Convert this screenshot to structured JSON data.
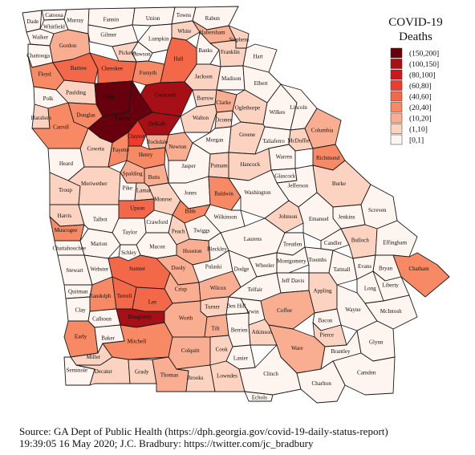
{
  "legend": {
    "title_line1": "COVID-19",
    "title_line2": "Deaths",
    "bins": [
      {
        "label": "(150,200]",
        "color": "#67000d"
      },
      {
        "label": "(100,150]",
        "color": "#a50f15"
      },
      {
        "label": "(80,100]",
        "color": "#cb181d"
      },
      {
        "label": "(60,80]",
        "color": "#ef3b2c"
      },
      {
        "label": "(40,60]",
        "color": "#f4684a"
      },
      {
        "label": "(20,40]",
        "color": "#f78a64"
      },
      {
        "label": "(10,20]",
        "color": "#f9ae92"
      },
      {
        "label": "(1,10]",
        "color": "#fcd3c0"
      },
      {
        "label": "[0,1]",
        "color": "#fff5f0"
      }
    ]
  },
  "source": {
    "line1": "Source: GA Dept of Public Health (https://dph.georgia.gov/covid-19-daily-status-report)",
    "line2": "19:39:05  16 May 2020; J.C. Bradbury: https://twitter.com/jc_bradbury"
  },
  "counties": [
    {
      "name": "Dade",
      "bin": 8
    },
    {
      "name": "Catoosa",
      "bin": 8
    },
    {
      "name": "Whitfield",
      "bin": 8
    },
    {
      "name": "Murray",
      "bin": 8
    },
    {
      "name": "Fannin",
      "bin": 8
    },
    {
      "name": "Union",
      "bin": 8
    },
    {
      "name": "Towns",
      "bin": 8
    },
    {
      "name": "Rabun",
      "bin": 8
    },
    {
      "name": "Walker",
      "bin": 8
    },
    {
      "name": "Gilmer",
      "bin": 8
    },
    {
      "name": "White",
      "bin": 7
    },
    {
      "name": "Habersham",
      "bin": 6
    },
    {
      "name": "Stephens",
      "bin": 7
    },
    {
      "name": "Chattooga",
      "bin": 8
    },
    {
      "name": "Gordon",
      "bin": 6
    },
    {
      "name": "Lumpkin",
      "bin": 8
    },
    {
      "name": "Dawson",
      "bin": 8
    },
    {
      "name": "Pickens",
      "bin": 7
    },
    {
      "name": "Banks",
      "bin": 8
    },
    {
      "name": "Franklin",
      "bin": 7
    },
    {
      "name": "Hart",
      "bin": 8
    },
    {
      "name": "Floyd",
      "bin": 5
    },
    {
      "name": "Bartow",
      "bin": 4
    },
    {
      "name": "Cherokee",
      "bin": 4
    },
    {
      "name": "Forsyth",
      "bin": 5
    },
    {
      "name": "Hall",
      "bin": 4
    },
    {
      "name": "Jackson",
      "bin": 7
    },
    {
      "name": "Madison",
      "bin": 8
    },
    {
      "name": "Elbert",
      "bin": 8
    },
    {
      "name": "Polk",
      "bin": 8
    },
    {
      "name": "Paulding",
      "bin": 7
    },
    {
      "name": "Cobb",
      "bin": 0
    },
    {
      "name": "Gwinnett",
      "bin": 1
    },
    {
      "name": "Barrow",
      "bin": 7
    },
    {
      "name": "Clarke",
      "bin": 6
    },
    {
      "name": "Oglethorpe",
      "bin": 7
    },
    {
      "name": "Haralson",
      "bin": 7
    },
    {
      "name": "Douglas",
      "bin": 5
    },
    {
      "name": "Fulton",
      "bin": 0
    },
    {
      "name": "DeKalb",
      "bin": 1
    },
    {
      "name": "Walton",
      "bin": 7
    },
    {
      "name": "Oconee",
      "bin": 7
    },
    {
      "name": "Wilkes",
      "bin": 8
    },
    {
      "name": "Lincoln",
      "bin": 8
    },
    {
      "name": "Carroll",
      "bin": 5
    },
    {
      "name": "Clayton",
      "bin": 3
    },
    {
      "name": "Rockdale",
      "bin": 6
    },
    {
      "name": "Newton",
      "bin": 6
    },
    {
      "name": "Morgan",
      "bin": 8
    },
    {
      "name": "Greene",
      "bin": 7
    },
    {
      "name": "Taliaferro",
      "bin": 8
    },
    {
      "name": "McDuffie",
      "bin": 7
    },
    {
      "name": "Columbia",
      "bin": 6
    },
    {
      "name": "Coweta",
      "bin": 7
    },
    {
      "name": "Fayette",
      "bin": 5
    },
    {
      "name": "Henry",
      "bin": 5
    },
    {
      "name": "Spalding",
      "bin": 6
    },
    {
      "name": "Butts",
      "bin": 6
    },
    {
      "name": "Jasper",
      "bin": 8
    },
    {
      "name": "Putnam",
      "bin": 7
    },
    {
      "name": "Hancock",
      "bin": 7
    },
    {
      "name": "Warren",
      "bin": 8
    },
    {
      "name": "Glascock",
      "bin": 8
    },
    {
      "name": "Richmond",
      "bin": 5
    },
    {
      "name": "Heard",
      "bin": 8
    },
    {
      "name": "Troup",
      "bin": 7
    },
    {
      "name": "Meriwether",
      "bin": 7
    },
    {
      "name": "Pike",
      "bin": 8
    },
    {
      "name": "Lamar",
      "bin": 7
    },
    {
      "name": "Monroe",
      "bin": 7
    },
    {
      "name": "Jones",
      "bin": 8
    },
    {
      "name": "Baldwin",
      "bin": 5
    },
    {
      "name": "Washington",
      "bin": 8
    },
    {
      "name": "Jefferson",
      "bin": 8
    },
    {
      "name": "Burke",
      "bin": 7
    },
    {
      "name": "Upson",
      "bin": 4
    },
    {
      "name": "Bibb",
      "bin": 5
    },
    {
      "name": "Wilkinson",
      "bin": 8
    },
    {
      "name": "Jenkins",
      "bin": 8
    },
    {
      "name": "Screven",
      "bin": 8
    },
    {
      "name": "Harris",
      "bin": 7
    },
    {
      "name": "Talbot",
      "bin": 8
    },
    {
      "name": "Crawford",
      "bin": 8
    },
    {
      "name": "Twiggs",
      "bin": 8
    },
    {
      "name": "Johnson",
      "bin": 7
    },
    {
      "name": "Emanuel",
      "bin": 8
    },
    {
      "name": "Muscogee",
      "bin": 5
    },
    {
      "name": "Taylor",
      "bin": 8
    },
    {
      "name": "Peach",
      "bin": 7
    },
    {
      "name": "Houston",
      "bin": 6
    },
    {
      "name": "Laurens",
      "bin": 8
    },
    {
      "name": "Chattahoochee",
      "bin": 8
    },
    {
      "name": "Marion",
      "bin": 8
    },
    {
      "name": "Macon",
      "bin": 8
    },
    {
      "name": "Bleckley",
      "bin": 8
    },
    {
      "name": "Treutlen",
      "bin": 8
    },
    {
      "name": "Candler",
      "bin": 8
    },
    {
      "name": "Bulloch",
      "bin": 7
    },
    {
      "name": "Effingham",
      "bin": 8
    },
    {
      "name": "Schley",
      "bin": 8
    },
    {
      "name": "Dooly",
      "bin": 6
    },
    {
      "name": "Pulaski",
      "bin": 8
    },
    {
      "name": "Dodge",
      "bin": 8
    },
    {
      "name": "Wheeler",
      "bin": 8
    },
    {
      "name": "Montgomery",
      "bin": 8
    },
    {
      "name": "Toombs",
      "bin": 8
    },
    {
      "name": "Tattnall",
      "bin": 8
    },
    {
      "name": "Evans",
      "bin": 8
    },
    {
      "name": "Bryan",
      "bin": 8
    },
    {
      "name": "Chatham",
      "bin": 5
    },
    {
      "name": "Stewart",
      "bin": 8
    },
    {
      "name": "Webster",
      "bin": 8
    },
    {
      "name": "Sumter",
      "bin": 4
    },
    {
      "name": "Crisp",
      "bin": 6
    },
    {
      "name": "Wilcox",
      "bin": 6
    },
    {
      "name": "Telfair",
      "bin": 8
    },
    {
      "name": "Jeff Davis",
      "bin": 8
    },
    {
      "name": "Appling",
      "bin": 7
    },
    {
      "name": "Long",
      "bin": 8
    },
    {
      "name": "Liberty",
      "bin": 8
    },
    {
      "name": "Quitman",
      "bin": 8
    },
    {
      "name": "Randolph",
      "bin": 5
    },
    {
      "name": "Terrell",
      "bin": 4
    },
    {
      "name": "Lee",
      "bin": 4
    },
    {
      "name": "Turner",
      "bin": 7
    },
    {
      "name": "Ben Hill",
      "bin": 8
    },
    {
      "name": "Irwin",
      "bin": 8
    },
    {
      "name": "Coffee",
      "bin": 6
    },
    {
      "name": "Bacon",
      "bin": 8
    },
    {
      "name": "Wayne",
      "bin": 8
    },
    {
      "name": "McIntosh",
      "bin": 8
    },
    {
      "name": "Clay",
      "bin": 8
    },
    {
      "name": "Calhoun",
      "bin": 8
    },
    {
      "name": "Dougherty",
      "bin": 1
    },
    {
      "name": "Worth",
      "bin": 6
    },
    {
      "name": "Tift",
      "bin": 6
    },
    {
      "name": "Pierce",
      "bin": 7
    },
    {
      "name": "Early",
      "bin": 5
    },
    {
      "name": "Baker",
      "bin": 8
    },
    {
      "name": "Berrien",
      "bin": 8
    },
    {
      "name": "Atkinson",
      "bin": 7
    },
    {
      "name": "Ware",
      "bin": 6
    },
    {
      "name": "Brantley",
      "bin": 8
    },
    {
      "name": "Glynn",
      "bin": 8
    },
    {
      "name": "Miller",
      "bin": 7
    },
    {
      "name": "Mitchell",
      "bin": 5
    },
    {
      "name": "Colquitt",
      "bin": 6
    },
    {
      "name": "Cook",
      "bin": 7
    },
    {
      "name": "Lanier",
      "bin": 8
    },
    {
      "name": "Camden",
      "bin": 8
    },
    {
      "name": "Seminole",
      "bin": 8
    },
    {
      "name": "Decatur",
      "bin": 7
    },
    {
      "name": "Grady",
      "bin": 7
    },
    {
      "name": "Thomas",
      "bin": 6
    },
    {
      "name": "Brooks",
      "bin": 7
    },
    {
      "name": "Lowndes",
      "bin": 7
    },
    {
      "name": "Clinch",
      "bin": 8
    },
    {
      "name": "Echols",
      "bin": 8
    },
    {
      "name": "Charlton",
      "bin": 8
    }
  ]
}
